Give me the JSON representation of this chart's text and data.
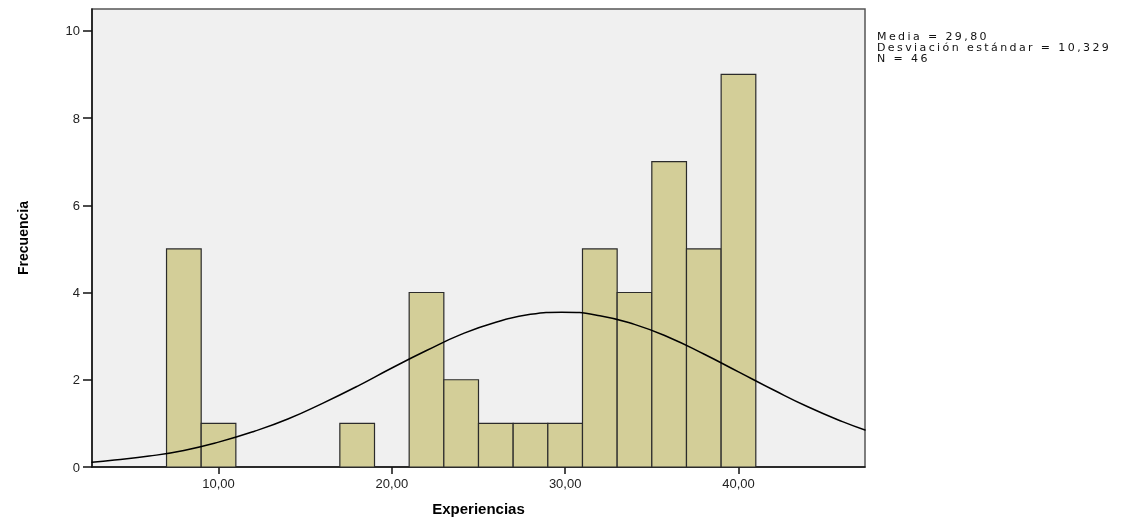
{
  "chart_data": {
    "type": "histogram",
    "xlabel": "Experiencias",
    "ylabel": "Frecuencia",
    "annotations": [
      "Media = 29,80",
      "Desviación estándar = 10,329",
      "N = 46"
    ],
    "bins": [
      7,
      9,
      11,
      13,
      15,
      17,
      19,
      21,
      23,
      25,
      27,
      29,
      31,
      33,
      35,
      37,
      39,
      41
    ],
    "series": [
      {
        "color": "#d3ce98",
        "values": [
          5,
          1,
          0,
          0,
          0,
          1,
          0,
          4,
          2,
          1,
          1,
          1,
          5,
          4,
          7,
          5,
          9
        ]
      },
      {
        "type": "line",
        "color": "#000000",
        "x": [
          2.7,
          4,
          6,
          8,
          10,
          12,
          14,
          16,
          18,
          20,
          22,
          24,
          26,
          28,
          29.8,
          32,
          34,
          36,
          38,
          40,
          42,
          44,
          46,
          47.3
        ],
        "values": [
          0.11,
          0.16,
          0.25,
          0.38,
          0.57,
          0.81,
          1.1,
          1.46,
          1.85,
          2.27,
          2.67,
          3.04,
          3.32,
          3.5,
          3.55,
          3.47,
          3.27,
          2.97,
          2.59,
          2.18,
          1.77,
          1.38,
          1.04,
          0.85
        ]
      }
    ],
    "xlim": [
      2.7,
      47.3
    ],
    "xticks": [
      {
        "value": 10,
        "label": "10,00"
      },
      {
        "value": 20,
        "label": "20,00"
      },
      {
        "value": 30,
        "label": "30,00"
      },
      {
        "value": 40,
        "label": "40,00"
      }
    ],
    "ylim": [
      0,
      10.5
    ],
    "yticks": [
      0,
      2,
      4,
      6,
      8,
      10
    ]
  }
}
